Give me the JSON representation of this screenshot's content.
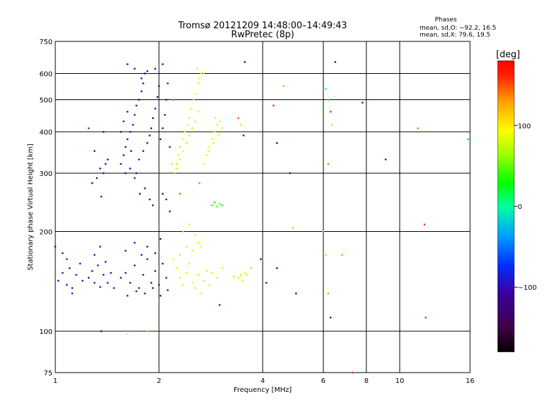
{
  "header": {
    "title_line1": "Tromsø 20121209 14:48:00–14:49:43",
    "title_line2": "RwPretec (8p)"
  },
  "phases_box": {
    "heading": "Phases",
    "line1": "mean, sd,O: −92.2, 16.5",
    "line2": "mean, sd,X:  79.6, 19.5"
  },
  "colorbar": {
    "unit": "[deg]",
    "ticks": [
      {
        "value": 100,
        "label": "100"
      },
      {
        "value": 0,
        "label": "0"
      },
      {
        "value": -100,
        "label": "−100"
      }
    ],
    "range": [
      -180,
      180
    ]
  },
  "chart_data": {
    "type": "scatter",
    "xlabel": "Frequency [MHz]",
    "ylabel": "Stationary phase Virtual Height [km]",
    "x_scale": "log",
    "y_scale": "log",
    "xlim": [
      1,
      16
    ],
    "ylim": [
      75,
      750
    ],
    "x_ticks": [
      {
        "value": 1,
        "label": "1"
      },
      {
        "value": 2,
        "label": "2"
      },
      {
        "value": 4,
        "label": "4"
      },
      {
        "value": 6,
        "label": "6"
      },
      {
        "value": 8,
        "label": "8"
      },
      {
        "value": 10,
        "label": "10"
      },
      {
        "value": 16,
        "label": "16"
      }
    ],
    "y_ticks": [
      {
        "value": 75,
        "label": "75"
      },
      {
        "value": 100,
        "label": "100"
      },
      {
        "value": 200,
        "label": "200"
      },
      {
        "value": 300,
        "label": "300"
      },
      {
        "value": 400,
        "label": "400"
      },
      {
        "value": 500,
        "label": "500"
      },
      {
        "value": 600,
        "label": "600"
      },
      {
        "value": 750,
        "label": "750"
      }
    ],
    "grid": true,
    "series": [
      {
        "color_value": "phase [deg]",
        "points": [
          [
            1.02,
            142,
            -110
          ],
          [
            1.05,
            150,
            -105
          ],
          [
            1.08,
            138,
            -100
          ],
          [
            1.1,
            155,
            -108
          ],
          [
            1.12,
            135,
            -112
          ],
          [
            1.15,
            148,
            -95
          ],
          [
            1.18,
            160,
            -102
          ],
          [
            1.2,
            142,
            -115
          ],
          [
            1.05,
            172,
            -110
          ],
          [
            1.08,
            165,
            -100
          ],
          [
            1.0,
            180,
            -120
          ],
          [
            1.12,
            130,
            -98
          ],
          [
            1.25,
            145,
            -108
          ],
          [
            1.28,
            152,
            -112
          ],
          [
            1.3,
            140,
            -100
          ],
          [
            1.33,
            158,
            -95
          ],
          [
            1.35,
            136,
            -110
          ],
          [
            1.38,
            148,
            -105
          ],
          [
            1.4,
            162,
            -118
          ],
          [
            1.42,
            140,
            -92
          ],
          [
            1.3,
            170,
            -100
          ],
          [
            1.35,
            180,
            -108
          ],
          [
            1.45,
            150,
            -110
          ],
          [
            1.48,
            135,
            -102
          ],
          [
            1.32,
            290,
            -110
          ],
          [
            1.35,
            310,
            -115
          ],
          [
            1.38,
            300,
            -105
          ],
          [
            1.4,
            320,
            -112
          ],
          [
            1.36,
            255,
            -108
          ],
          [
            1.42,
            330,
            -118
          ],
          [
            1.28,
            280,
            -110
          ],
          [
            1.3,
            350,
            -120
          ],
          [
            1.25,
            410,
            -60
          ],
          [
            1.38,
            400,
            -105
          ],
          [
            1.55,
            320,
            -112
          ],
          [
            1.58,
            340,
            -108
          ],
          [
            1.6,
            360,
            -105
          ],
          [
            1.62,
            380,
            -110
          ],
          [
            1.65,
            400,
            -115
          ],
          [
            1.68,
            420,
            -100
          ],
          [
            1.7,
            450,
            -108
          ],
          [
            1.72,
            480,
            -112
          ],
          [
            1.75,
            500,
            -118
          ],
          [
            1.78,
            530,
            -105
          ],
          [
            1.8,
            560,
            -110
          ],
          [
            1.82,
            600,
            -115
          ],
          [
            1.6,
            300,
            -108
          ],
          [
            1.65,
            310,
            -112
          ],
          [
            1.7,
            290,
            -105
          ],
          [
            1.75,
            330,
            -110
          ],
          [
            1.8,
            350,
            -118
          ],
          [
            1.85,
            370,
            -102
          ],
          [
            1.88,
            390,
            -108
          ],
          [
            1.9,
            410,
            -112
          ],
          [
            1.92,
            440,
            -115
          ],
          [
            1.95,
            470,
            -110
          ],
          [
            1.98,
            510,
            -105
          ],
          [
            2.0,
            550,
            -112
          ],
          [
            1.62,
            640,
            -120
          ],
          [
            1.7,
            620,
            -110
          ],
          [
            1.78,
            580,
            -108
          ],
          [
            1.85,
            610,
            -100
          ],
          [
            1.95,
            620,
            -112
          ],
          [
            2.05,
            640,
            -118
          ],
          [
            2.02,
            380,
            -105
          ],
          [
            2.05,
            410,
            -110
          ],
          [
            2.08,
            450,
            -115
          ],
          [
            2.1,
            500,
            -108
          ],
          [
            2.12,
            560,
            -112
          ],
          [
            2.15,
            360,
            -105
          ],
          [
            1.55,
            400,
            -108
          ],
          [
            1.58,
            430,
            -112
          ],
          [
            1.62,
            460,
            -115
          ],
          [
            1.66,
            350,
            -110
          ],
          [
            1.72,
            300,
            -108
          ],
          [
            1.76,
            260,
            -112
          ],
          [
            1.82,
            270,
            -115
          ],
          [
            1.88,
            250,
            -110
          ],
          [
            1.92,
            240,
            -105
          ],
          [
            2.05,
            260,
            -120
          ],
          [
            2.1,
            250,
            -112
          ],
          [
            2.15,
            230,
            -108
          ],
          [
            1.55,
            145,
            -110
          ],
          [
            1.6,
            150,
            -105
          ],
          [
            1.65,
            140,
            -112
          ],
          [
            1.7,
            158,
            -108
          ],
          [
            1.75,
            135,
            -115
          ],
          [
            1.8,
            148,
            -100
          ],
          [
            1.85,
            165,
            -110
          ],
          [
            1.9,
            140,
            -105
          ],
          [
            1.95,
            152,
            -112
          ],
          [
            2.0,
            138,
            -118
          ],
          [
            2.05,
            160,
            -108
          ],
          [
            2.1,
            145,
            -110
          ],
          [
            1.6,
            175,
            -110
          ],
          [
            1.7,
            185,
            -105
          ],
          [
            1.78,
            170,
            -112
          ],
          [
            1.85,
            180,
            -108
          ],
          [
            1.95,
            172,
            -115
          ],
          [
            2.02,
            190,
            -110
          ],
          [
            1.62,
            128,
            -108
          ],
          [
            1.72,
            132,
            -112
          ],
          [
            1.82,
            130,
            -105
          ],
          [
            1.92,
            135,
            -110
          ],
          [
            2.02,
            128,
            -115
          ],
          [
            2.12,
            133,
            -108
          ],
          [
            2.22,
            300,
            60
          ],
          [
            2.25,
            320,
            70
          ],
          [
            2.28,
            340,
            80
          ],
          [
            2.3,
            360,
            75
          ],
          [
            2.35,
            380,
            85
          ],
          [
            2.38,
            400,
            80
          ],
          [
            2.42,
            420,
            90
          ],
          [
            2.45,
            440,
            78
          ],
          [
            2.48,
            470,
            82
          ],
          [
            2.52,
            500,
            75
          ],
          [
            2.55,
            520,
            88
          ],
          [
            2.6,
            560,
            80
          ],
          [
            2.25,
            310,
            75
          ],
          [
            2.3,
            330,
            82
          ],
          [
            2.35,
            350,
            90
          ],
          [
            2.4,
            370,
            78
          ],
          [
            2.45,
            390,
            85
          ],
          [
            2.5,
            410,
            72
          ],
          [
            2.55,
            430,
            80
          ],
          [
            2.6,
            460,
            88
          ],
          [
            2.65,
            600,
            85
          ],
          [
            2.58,
            620,
            80
          ],
          [
            2.62,
            580,
            78
          ],
          [
            2.7,
            600,
            70
          ],
          [
            2.7,
            320,
            80
          ],
          [
            2.75,
            340,
            85
          ],
          [
            2.8,
            360,
            78
          ],
          [
            2.85,
            380,
            90
          ],
          [
            2.9,
            400,
            82
          ],
          [
            2.95,
            420,
            75
          ],
          [
            3.0,
            430,
            80
          ],
          [
            2.78,
            350,
            88
          ],
          [
            2.88,
            370,
            72
          ],
          [
            2.98,
            390,
            85
          ],
          [
            3.05,
            410,
            80
          ],
          [
            2.92,
            440,
            78
          ],
          [
            2.25,
            155,
            80
          ],
          [
            2.3,
            145,
            75
          ],
          [
            2.35,
            138,
            85
          ],
          [
            2.4,
            150,
            82
          ],
          [
            2.45,
            160,
            78
          ],
          [
            2.5,
            140,
            90
          ],
          [
            2.55,
            135,
            80
          ],
          [
            2.6,
            148,
            72
          ],
          [
            2.65,
            130,
            85
          ],
          [
            2.7,
            142,
            78
          ],
          [
            2.75,
            152,
            88
          ],
          [
            2.8,
            138,
            80
          ],
          [
            2.3,
            170,
            70
          ],
          [
            2.4,
            180,
            82
          ],
          [
            2.5,
            175,
            78
          ],
          [
            2.6,
            185,
            85
          ],
          [
            2.2,
            165,
            90
          ],
          [
            2.35,
            200,
            60
          ],
          [
            2.45,
            210,
            75
          ],
          [
            2.55,
            195,
            80
          ],
          [
            2.65,
            180,
            85
          ],
          [
            2.85,
            150,
            82
          ],
          [
            2.95,
            145,
            78
          ],
          [
            3.05,
            155,
            85
          ],
          [
            3.4,
            145,
            80
          ],
          [
            3.45,
            148,
            75
          ],
          [
            3.5,
            142,
            85
          ],
          [
            3.55,
            150,
            82
          ],
          [
            3.3,
            146,
            70
          ],
          [
            3.6,
            148,
            78
          ],
          [
            3.7,
            155,
            60
          ],
          [
            2.85,
            240,
            40
          ],
          [
            2.9,
            245,
            35
          ],
          [
            2.95,
            238,
            45
          ],
          [
            3.0,
            242,
            38
          ],
          [
            3.05,
            240,
            42
          ],
          [
            2.2,
            500,
            -30
          ],
          [
            2.18,
            320,
            110
          ],
          [
            2.62,
            280,
            140
          ],
          [
            2.3,
            260,
            150
          ],
          [
            3.45,
            420,
            110
          ],
          [
            3.52,
            390,
            -110
          ],
          [
            3.55,
            650,
            -110
          ],
          [
            3.4,
            440,
            150
          ],
          [
            4.3,
            480,
            160
          ],
          [
            4.4,
            370,
            -130
          ],
          [
            4.6,
            550,
            130
          ],
          [
            4.8,
            300,
            -110
          ],
          [
            4.9,
            205,
            120
          ],
          [
            6.0,
            200,
            120
          ],
          [
            6.1,
            170,
            110
          ],
          [
            6.2,
            130,
            130
          ],
          [
            6.3,
            110,
            -120
          ],
          [
            6.5,
            650,
            -120
          ],
          [
            6.8,
            170,
            40
          ],
          [
            6.1,
            540,
            0
          ],
          [
            6.2,
            500,
            40
          ],
          [
            6.3,
            460,
            160
          ],
          [
            6.35,
            420,
            110
          ],
          [
            6.2,
            320,
            140
          ],
          [
            7.8,
            490,
            -100
          ],
          [
            9.1,
            330,
            -110
          ],
          [
            11.3,
            410,
            140
          ],
          [
            11.8,
            210,
            160
          ],
          [
            11.9,
            110,
            160
          ],
          [
            15.8,
            380,
            -20
          ],
          [
            7.3,
            75,
            160
          ],
          [
            1.85,
            100,
            120
          ],
          [
            1.36,
            100,
            -100
          ],
          [
            1.62,
            98,
            80
          ],
          [
            4.4,
            155,
            -110
          ],
          [
            4.1,
            140,
            -110
          ],
          [
            3.95,
            165,
            -110
          ],
          [
            5.0,
            130,
            -110
          ],
          [
            3.0,
            120,
            -120
          ]
        ]
      }
    ]
  },
  "colors": {
    "background": "#ffffff",
    "axis": "#000000",
    "grid": "#000000"
  }
}
